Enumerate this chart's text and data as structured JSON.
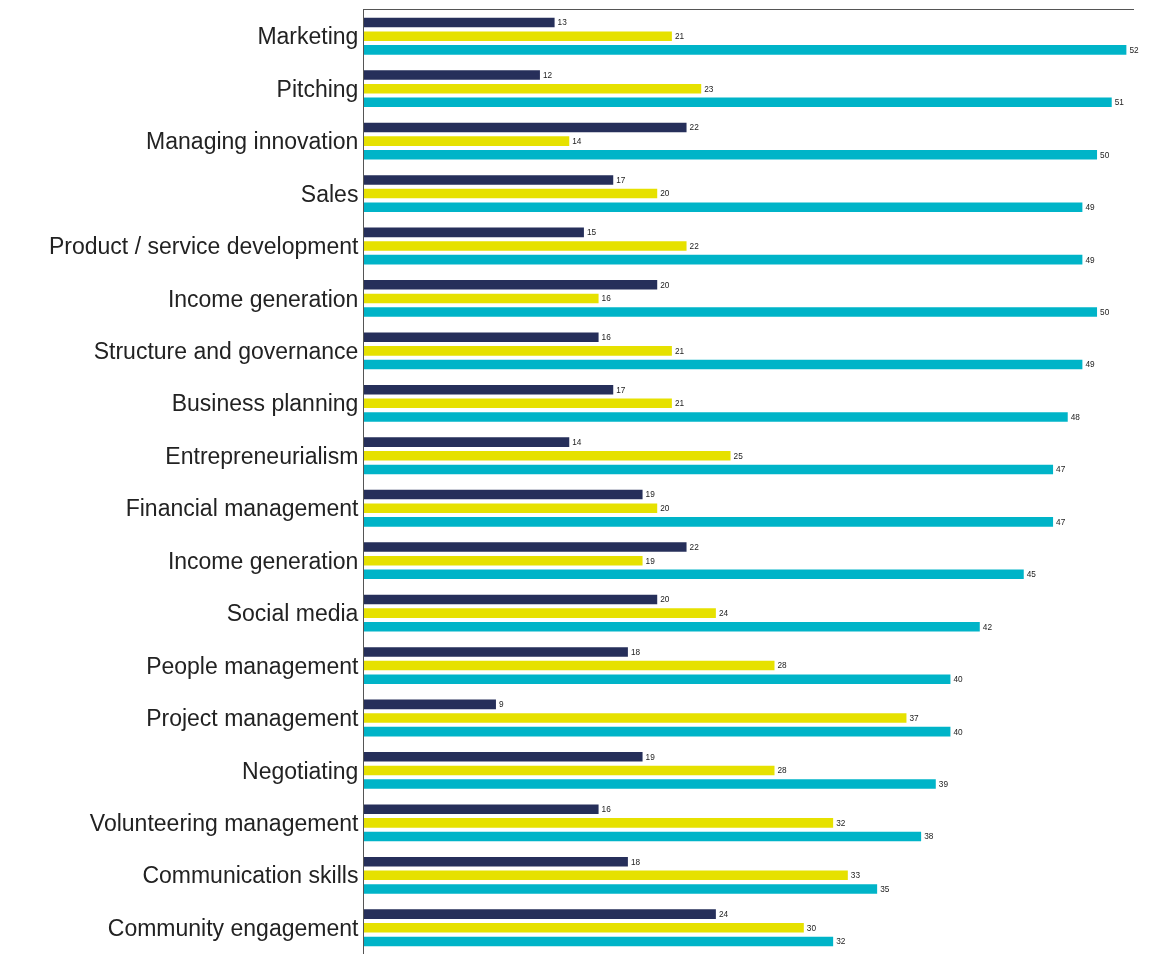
{
  "chart_data": {
    "type": "bar",
    "orientation": "horizontal",
    "data_labels": true,
    "categories": [
      "Marketing",
      "Pitching",
      "Managing innovation",
      "Sales",
      "Product / service development",
      "Income generation",
      "Structure and governance",
      "Business planning",
      "Entrepreneurialism",
      "Financial management",
      "Income generation",
      "Social media",
      "People management",
      "Project management",
      "Negotiating",
      "Volunteering management",
      "Communication skills",
      "Community engagement"
    ],
    "series": [
      {
        "color": "#262f5a",
        "values": [
          13,
          12,
          22,
          17,
          15,
          20,
          16,
          17,
          14,
          19,
          22,
          20,
          18,
          9,
          19,
          16,
          18,
          24
        ]
      },
      {
        "color": "#e6e100",
        "values": [
          21,
          23,
          14,
          20,
          22,
          16,
          21,
          21,
          25,
          20,
          19,
          24,
          28,
          37,
          28,
          32,
          33,
          30
        ]
      },
      {
        "color": "#00b4c8",
        "values": [
          52,
          51,
          50,
          49,
          49,
          50,
          49,
          48,
          47,
          47,
          45,
          42,
          40,
          40,
          39,
          38,
          35,
          32
        ]
      }
    ]
  }
}
